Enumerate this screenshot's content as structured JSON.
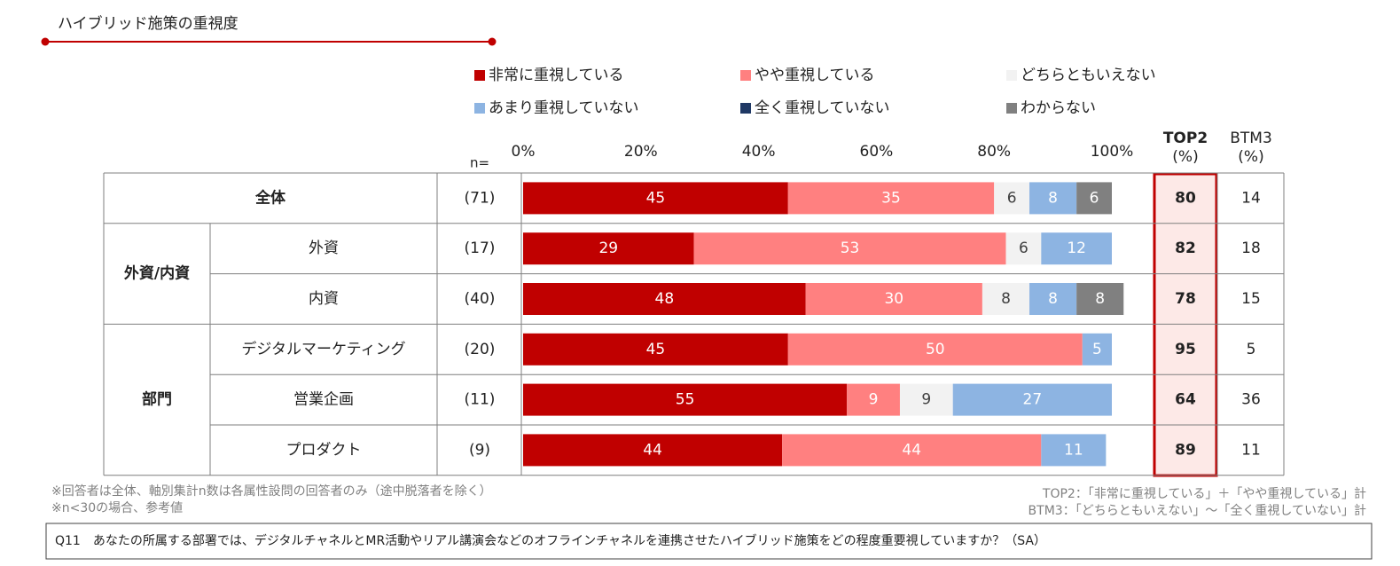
{
  "chart_data": {
    "type": "bar",
    "orientation": "horizontal",
    "stacked": true,
    "title": "ハイブリッド施策の重視度",
    "n_header": "n=",
    "row_groups": [
      {
        "label": "全体",
        "categories": []
      },
      {
        "label": "外資/内資",
        "categories": [
          "外資",
          "内資"
        ]
      },
      {
        "label": "部門",
        "categories": [
          "デジタルマーケティング",
          "営業企画",
          "プロダクト"
        ]
      }
    ],
    "n_labels": [
      "(71)",
      "(17)",
      "(40)",
      "(20)",
      "(11)",
      "(9)"
    ],
    "series": [
      {
        "name": "非常に重視している",
        "color": "#c00000",
        "label_color": "#ffffff",
        "values": [
          45,
          29,
          48,
          45,
          55,
          44
        ]
      },
      {
        "name": "やや重視している",
        "color": "#ff8080",
        "label_color": "#ffffff",
        "values": [
          35,
          53,
          30,
          50,
          9,
          44
        ]
      },
      {
        "name": "どちらともいえない",
        "color": "#f2f2f2",
        "label_color": "#404040",
        "values": [
          6,
          6,
          8,
          null,
          9,
          null
        ]
      },
      {
        "name": "あまり重視していない",
        "color": "#8db4e2",
        "label_color": "#ffffff",
        "values": [
          8,
          12,
          8,
          5,
          27,
          11
        ]
      },
      {
        "name": "全く重視していない",
        "color": "#1f3864",
        "label_color": "#ffffff",
        "values": [
          null,
          null,
          null,
          null,
          null,
          null
        ]
      },
      {
        "name": "わからない",
        "color": "#808080",
        "label_color": "#ffffff",
        "values": [
          6,
          null,
          8,
          null,
          null,
          null
        ]
      }
    ],
    "xlim": [
      0,
      100
    ],
    "xticks": [
      {
        "value": 0,
        "label": "0%"
      },
      {
        "value": 20,
        "label": "20%"
      },
      {
        "value": 40,
        "label": "40%"
      },
      {
        "value": 60,
        "label": "60%"
      },
      {
        "value": 80,
        "label": "80%"
      },
      {
        "value": 100,
        "label": "100%"
      }
    ],
    "top2": {
      "header": "TOP2",
      "unit": "(%)",
      "values": [
        80,
        82,
        78,
        95,
        64,
        89
      ]
    },
    "btm3": {
      "header": "BTM3",
      "unit": "(%)",
      "values": [
        14,
        18,
        15,
        5,
        36,
        11
      ]
    },
    "notes": [
      "※回答者は全体、軸別集計n数は各属性設問の回答者のみ（途中脱落者を除く）",
      "※n<30の場合、参考値"
    ],
    "definitions": [
      "TOP2：「非常に重視している」＋「やや重視している」計",
      "BTM3：「どちらともいえない」～「全く重視していない」計"
    ],
    "question": "Q11　あなたの所属する部署では、デジタルチャネルとMR活動やリアル講演会などのオフラインチャネルを連携させたハイブリッド施策をどの程度重要視していますか？（SA）"
  }
}
